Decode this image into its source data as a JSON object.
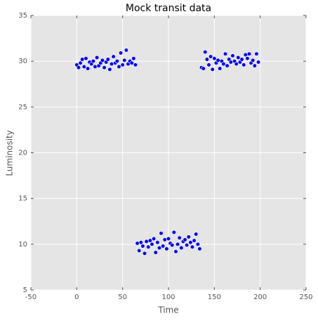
{
  "chart_data": {
    "type": "scatter",
    "title": "Mock transit data",
    "xlabel": "Time",
    "ylabel": "Luminosity",
    "series": [
      {
        "color": "#0000ff",
        "x": [
          0,
          2,
          4,
          6,
          8,
          10,
          12,
          14,
          16,
          18,
          20,
          22,
          24,
          26,
          28,
          30,
          32,
          34,
          36,
          38,
          40,
          42,
          44,
          46,
          48,
          50,
          52,
          54,
          56,
          58,
          60,
          62,
          64,
          66,
          68,
          70,
          72,
          74,
          76,
          78,
          80,
          82,
          84,
          86,
          88,
          90,
          92,
          94,
          96,
          98,
          100,
          102,
          104,
          106,
          108,
          110,
          112,
          114,
          116,
          118,
          120,
          122,
          124,
          126,
          128,
          130,
          132,
          134,
          136,
          138,
          140,
          142,
          144,
          146,
          148,
          150,
          152,
          154,
          156,
          158,
          160,
          162,
          164,
          166,
          168,
          170,
          172,
          174,
          176,
          178,
          180,
          182,
          184,
          186,
          188,
          190,
          192,
          194,
          196,
          198
        ],
        "values": [
          29.6,
          29.3,
          29.8,
          30.2,
          29.4,
          30.3,
          29.2,
          29.9,
          29.7,
          30.0,
          29.4,
          30.4,
          29.5,
          29.8,
          30.1,
          29.3,
          29.9,
          30.2,
          29.1,
          29.7,
          30.5,
          29.8,
          30.0,
          29.4,
          30.9,
          29.6,
          30.1,
          31.2,
          29.7,
          30.0,
          29.8,
          30.3,
          29.6,
          10.1,
          9.3,
          10.2,
          9.8,
          9.0,
          10.3,
          9.7,
          10.4,
          10.0,
          10.6,
          9.1,
          10.2,
          9.6,
          11.2,
          9.8,
          10.5,
          9.5,
          10.6,
          10.1,
          9.9,
          11.3,
          9.2,
          10.0,
          10.7,
          9.6,
          10.3,
          10.5,
          9.9,
          10.8,
          10.2,
          9.7,
          10.4,
          11.1,
          10.0,
          9.5,
          29.3,
          29.2,
          31.0,
          30.2,
          29.6,
          30.5,
          29.1,
          30.3,
          29.8,
          30.1,
          29.2,
          30.0,
          29.7,
          30.8,
          29.5,
          30.2,
          29.9,
          30.6,
          30.0,
          29.7,
          30.4,
          29.9,
          30.2,
          29.6,
          30.7,
          30.3,
          30.8,
          29.8,
          30.1,
          29.5,
          30.8,
          29.9
        ]
      }
    ],
    "xlim": [
      -50,
      250
    ],
    "xticks": [
      -50,
      0,
      50,
      100,
      150,
      200,
      250
    ],
    "ylim": [
      5,
      35
    ],
    "yticks": [
      5,
      10,
      15,
      20,
      25,
      30,
      35
    ],
    "grid": true
  }
}
